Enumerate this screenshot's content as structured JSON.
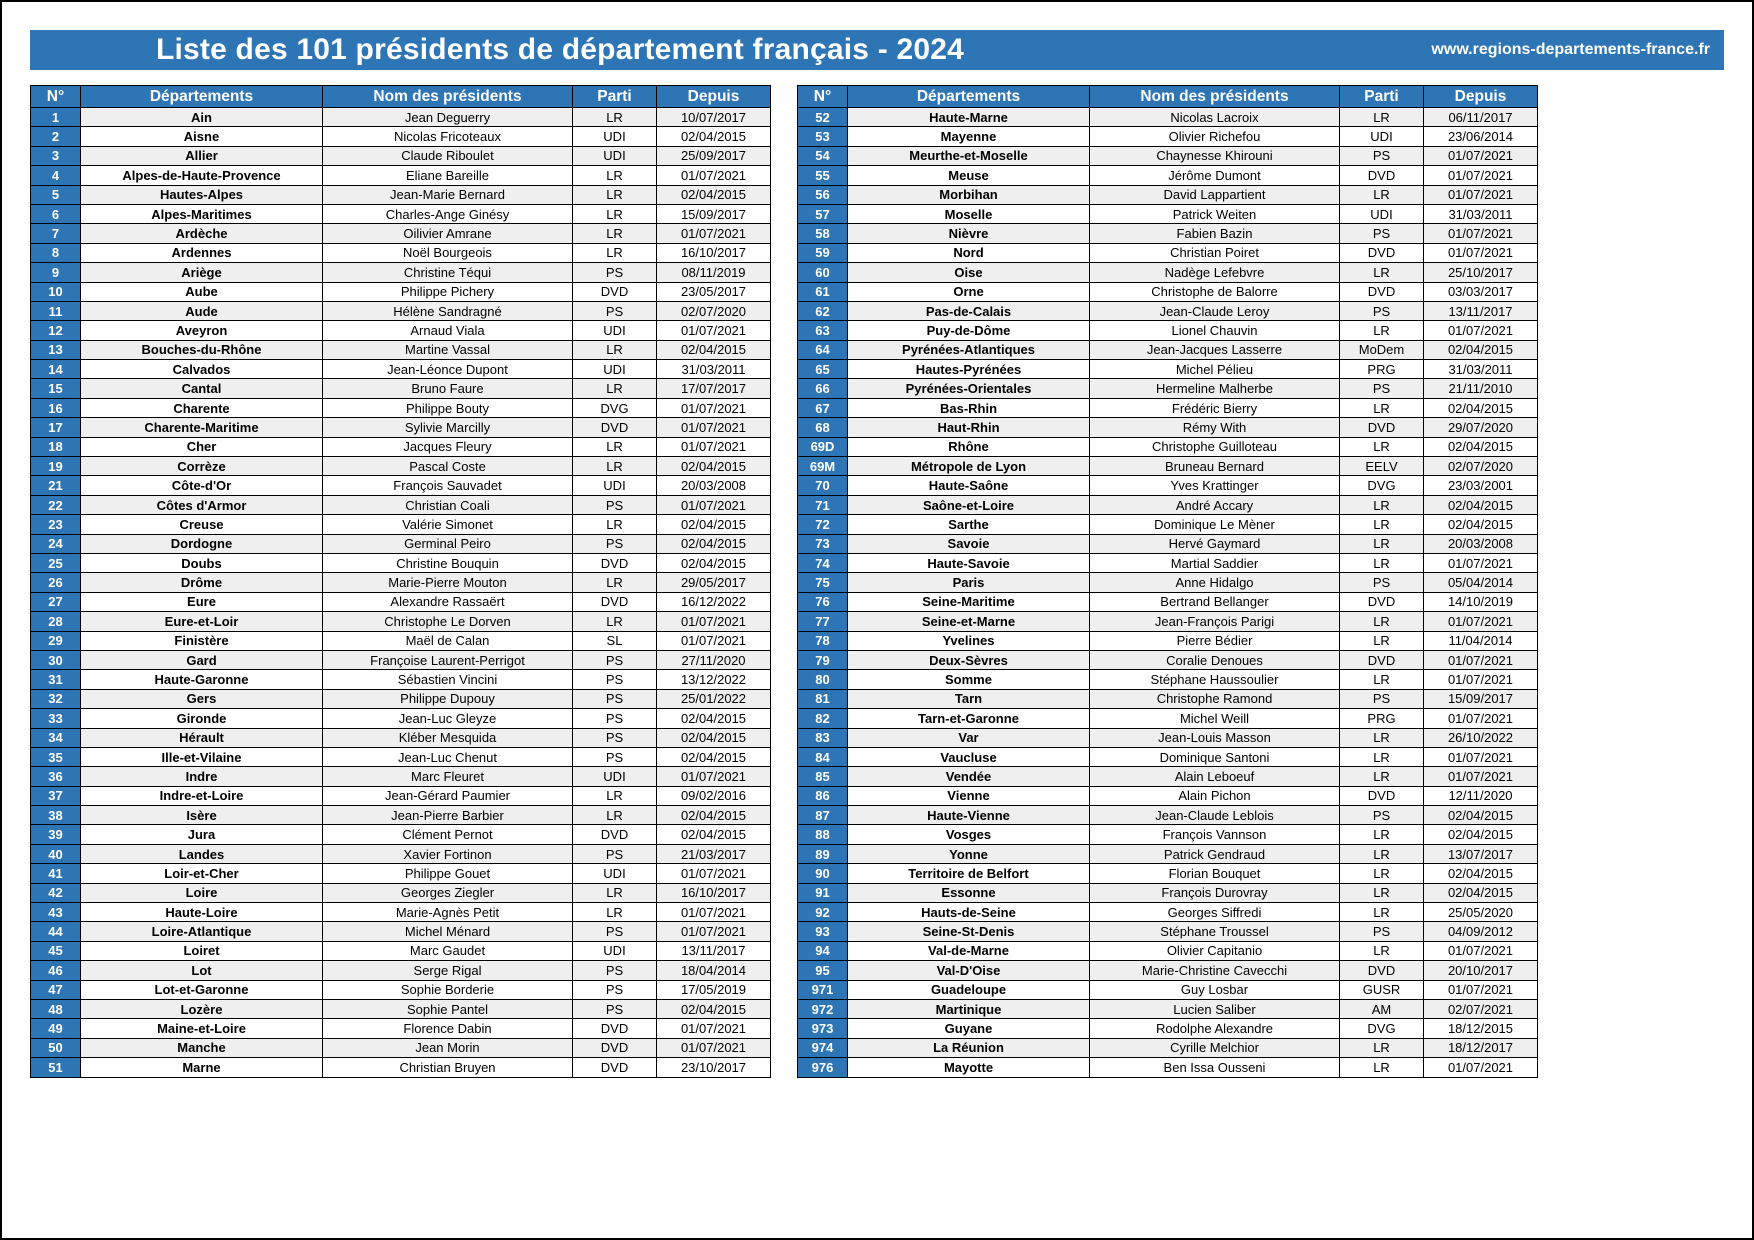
{
  "page": {
    "title": "Liste des 101 présidents de département français - 2024",
    "website": "www.regions-departements-france.fr",
    "accent_color": "#2E75B6",
    "stripe_color": "#EFEFEF"
  },
  "table": {
    "headers": [
      "N°",
      "Départements",
      "Nom des présidents",
      "Parti",
      "Depuis"
    ],
    "left_rows": [
      [
        "1",
        "Ain",
        "Jean Deguerry",
        "LR",
        "10/07/2017"
      ],
      [
        "2",
        "Aisne",
        "Nicolas Fricoteaux",
        "UDI",
        "02/04/2015"
      ],
      [
        "3",
        "Allier",
        "Claude Riboulet",
        "UDI",
        "25/09/2017"
      ],
      [
        "4",
        "Alpes-de-Haute-Provence",
        "Eliane Bareille",
        "LR",
        "01/07/2021"
      ],
      [
        "5",
        "Hautes-Alpes",
        "Jean-Marie Bernard",
        "LR",
        "02/04/2015"
      ],
      [
        "6",
        "Alpes-Maritimes",
        "Charles-Ange Ginésy",
        "LR",
        "15/09/2017"
      ],
      [
        "7",
        "Ardèche",
        "Oilivier Amrane",
        "LR",
        "01/07/2021"
      ],
      [
        "8",
        "Ardennes",
        "Noël Bourgeois",
        "LR",
        "16/10/2017"
      ],
      [
        "9",
        "Ariège",
        "Christine Téqui",
        "PS",
        "08/11/2019"
      ],
      [
        "10",
        "Aube",
        "Philippe Pichery",
        "DVD",
        "23/05/2017"
      ],
      [
        "11",
        "Aude",
        "Hélène Sandragné",
        "PS",
        "02/07/2020"
      ],
      [
        "12",
        "Aveyron",
        "Arnaud Viala",
        "UDI",
        "01/07/2021"
      ],
      [
        "13",
        "Bouches-du-Rhône",
        "Martine Vassal",
        "LR",
        "02/04/2015"
      ],
      [
        "14",
        "Calvados",
        "Jean-Léonce Dupont",
        "UDI",
        "31/03/2011"
      ],
      [
        "15",
        "Cantal",
        "Bruno Faure",
        "LR",
        "17/07/2017"
      ],
      [
        "16",
        "Charente",
        "Philippe Bouty",
        "DVG",
        "01/07/2021"
      ],
      [
        "17",
        "Charente-Maritime",
        "Sylivie Marcilly",
        "DVD",
        "01/07/2021"
      ],
      [
        "18",
        "Cher",
        "Jacques Fleury",
        "LR",
        "01/07/2021"
      ],
      [
        "19",
        "Corrèze",
        "Pascal Coste",
        "LR",
        "02/04/2015"
      ],
      [
        "21",
        "Côte-d'Or",
        "François Sauvadet",
        "UDI",
        "20/03/2008"
      ],
      [
        "22",
        "Côtes d'Armor",
        "Christian Coali",
        "PS",
        "01/07/2021"
      ],
      [
        "23",
        "Creuse",
        "Valérie Simonet",
        "LR",
        "02/04/2015"
      ],
      [
        "24",
        "Dordogne",
        "Germinal Peiro",
        "PS",
        "02/04/2015"
      ],
      [
        "25",
        "Doubs",
        "Christine Bouquin",
        "DVD",
        "02/04/2015"
      ],
      [
        "26",
        "Drôme",
        "Marie-Pierre Mouton",
        "LR",
        "29/05/2017"
      ],
      [
        "27",
        "Eure",
        "Alexandre Rassaërt",
        "DVD",
        "16/12/2022"
      ],
      [
        "28",
        "Eure-et-Loir",
        "Christophe Le Dorven",
        "LR",
        "01/07/2021"
      ],
      [
        "29",
        "Finistère",
        "Maël de Calan",
        "SL",
        "01/07/2021"
      ],
      [
        "30",
        "Gard",
        "Françoise Laurent-Perrigot",
        "PS",
        "27/11/2020"
      ],
      [
        "31",
        "Haute-Garonne",
        "Sébastien Vincini",
        "PS",
        "13/12/2022"
      ],
      [
        "32",
        "Gers",
        "Philippe Dupouy",
        "PS",
        "25/01/2022"
      ],
      [
        "33",
        "Gironde",
        "Jean-Luc Gleyze",
        "PS",
        "02/04/2015"
      ],
      [
        "34",
        "Hérault",
        "Kléber Mesquida",
        "PS",
        "02/04/2015"
      ],
      [
        "35",
        "Ille-et-Vilaine",
        "Jean-Luc Chenut",
        "PS",
        "02/04/2015"
      ],
      [
        "36",
        "Indre",
        "Marc Fleuret",
        "UDI",
        "01/07/2021"
      ],
      [
        "37",
        "Indre-et-Loire",
        "Jean-Gérard Paumier",
        "LR",
        "09/02/2016"
      ],
      [
        "38",
        "Isère",
        "Jean-Pierre Barbier",
        "LR",
        "02/04/2015"
      ],
      [
        "39",
        "Jura",
        "Clément Pernot",
        "DVD",
        "02/04/2015"
      ],
      [
        "40",
        "Landes",
        "Xavier Fortinon",
        "PS",
        "21/03/2017"
      ],
      [
        "41",
        "Loir-et-Cher",
        "Philippe Gouet",
        "UDI",
        "01/07/2021"
      ],
      [
        "42",
        "Loire",
        "Georges Ziegler",
        "LR",
        "16/10/2017"
      ],
      [
        "43",
        "Haute-Loire",
        "Marie-Agnès Petit",
        "LR",
        "01/07/2021"
      ],
      [
        "44",
        "Loire-Atlantique",
        "Michel Ménard",
        "PS",
        "01/07/2021"
      ],
      [
        "45",
        "Loiret",
        "Marc Gaudet",
        "UDI",
        "13/11/2017"
      ],
      [
        "46",
        "Lot",
        "Serge Rigal",
        "PS",
        "18/04/2014"
      ],
      [
        "47",
        "Lot-et-Garonne",
        "Sophie Borderie",
        "PS",
        "17/05/2019"
      ],
      [
        "48",
        "Lozère",
        "Sophie Pantel",
        "PS",
        "02/04/2015"
      ],
      [
        "49",
        "Maine-et-Loire",
        "Florence Dabin",
        "DVD",
        "01/07/2021"
      ],
      [
        "50",
        "Manche",
        "Jean Morin",
        "DVD",
        "01/07/2021"
      ],
      [
        "51",
        "Marne",
        "Christian Bruyen",
        "DVD",
        "23/10/2017"
      ]
    ],
    "right_rows": [
      [
        "52",
        "Haute-Marne",
        "Nicolas Lacroix",
        "LR",
        "06/11/2017"
      ],
      [
        "53",
        "Mayenne",
        "Olivier Richefou",
        "UDI",
        "23/06/2014"
      ],
      [
        "54",
        "Meurthe-et-Moselle",
        "Chaynesse Khirouni",
        "PS",
        "01/07/2021"
      ],
      [
        "55",
        "Meuse",
        "Jérôme Dumont",
        "DVD",
        "01/07/2021"
      ],
      [
        "56",
        "Morbihan",
        "David Lappartient",
        "LR",
        "01/07/2021"
      ],
      [
        "57",
        "Moselle",
        "Patrick Weiten",
        "UDI",
        "31/03/2011"
      ],
      [
        "58",
        "Nièvre",
        "Fabien Bazin",
        "PS",
        "01/07/2021"
      ],
      [
        "59",
        "Nord",
        "Christian Poiret",
        "DVD",
        "01/07/2021"
      ],
      [
        "60",
        "Oise",
        "Nadège Lefebvre",
        "LR",
        "25/10/2017"
      ],
      [
        "61",
        "Orne",
        "Christophe de Balorre",
        "DVD",
        "03/03/2017"
      ],
      [
        "62",
        "Pas-de-Calais",
        "Jean-Claude Leroy",
        "PS",
        "13/11/2017"
      ],
      [
        "63",
        "Puy-de-Dôme",
        "Lionel Chauvin",
        "LR",
        "01/07/2021"
      ],
      [
        "64",
        "Pyrénées-Atlantiques",
        "Jean-Jacques Lasserre",
        "MoDem",
        "02/04/2015"
      ],
      [
        "65",
        "Hautes-Pyrénées",
        "Michel Pélieu",
        "PRG",
        "31/03/2011"
      ],
      [
        "66",
        "Pyrénées-Orientales",
        "Hermeline Malherbe",
        "PS",
        "21/11/2010"
      ],
      [
        "67",
        "Bas-Rhin",
        "Frédéric Bierry",
        "LR",
        "02/04/2015"
      ],
      [
        "68",
        "Haut-Rhin",
        "Rémy With",
        "DVD",
        "29/07/2020"
      ],
      [
        "69D",
        "Rhône",
        "Christophe Guilloteau",
        "LR",
        "02/04/2015"
      ],
      [
        "69M",
        "Métropole de Lyon",
        "Bruneau Bernard",
        "EELV",
        "02/07/2020"
      ],
      [
        "70",
        "Haute-Saône",
        "Yves Krattinger",
        "DVG",
        "23/03/2001"
      ],
      [
        "71",
        "Saône-et-Loire",
        "André Accary",
        "LR",
        "02/04/2015"
      ],
      [
        "72",
        "Sarthe",
        "Dominique Le Mèner",
        "LR",
        "02/04/2015"
      ],
      [
        "73",
        "Savoie",
        "Hervé Gaymard",
        "LR",
        "20/03/2008"
      ],
      [
        "74",
        "Haute-Savoie",
        "Martial Saddier",
        "LR",
        "01/07/2021"
      ],
      [
        "75",
        "Paris",
        "Anne Hidalgo",
        "PS",
        "05/04/2014"
      ],
      [
        "76",
        "Seine-Maritime",
        "Bertrand Bellanger",
        "DVD",
        "14/10/2019"
      ],
      [
        "77",
        "Seine-et-Marne",
        "Jean-François Parigi",
        "LR",
        "01/07/2021"
      ],
      [
        "78",
        "Yvelines",
        "Pierre Bédier",
        "LR",
        "11/04/2014"
      ],
      [
        "79",
        "Deux-Sèvres",
        "Coralie Denoues",
        "DVD",
        "01/07/2021"
      ],
      [
        "80",
        "Somme",
        "Stéphane Haussoulier",
        "LR",
        "01/07/2021"
      ],
      [
        "81",
        "Tarn",
        "Christophe Ramond",
        "PS",
        "15/09/2017"
      ],
      [
        "82",
        "Tarn-et-Garonne",
        "Michel Weill",
        "PRG",
        "01/07/2021"
      ],
      [
        "83",
        "Var",
        "Jean-Louis Masson",
        "LR",
        "26/10/2022"
      ],
      [
        "84",
        "Vaucluse",
        "Dominique Santoni",
        "LR",
        "01/07/2021"
      ],
      [
        "85",
        "Vendée",
        "Alain Leboeuf",
        "LR",
        "01/07/2021"
      ],
      [
        "86",
        "Vienne",
        "Alain Pichon",
        "DVD",
        "12/11/2020"
      ],
      [
        "87",
        "Haute-Vienne",
        "Jean-Claude Leblois",
        "PS",
        "02/04/2015"
      ],
      [
        "88",
        "Vosges",
        "François Vannson",
        "LR",
        "02/04/2015"
      ],
      [
        "89",
        "Yonne",
        "Patrick Gendraud",
        "LR",
        "13/07/2017"
      ],
      [
        "90",
        "Territoire de Belfort",
        "Florian Bouquet",
        "LR",
        "02/04/2015"
      ],
      [
        "91",
        "Essonne",
        "François Durovray",
        "LR",
        "02/04/2015"
      ],
      [
        "92",
        "Hauts-de-Seine",
        "Georges Siffredi",
        "LR",
        "25/05/2020"
      ],
      [
        "93",
        "Seine-St-Denis",
        "Stéphane Troussel",
        "PS",
        "04/09/2012"
      ],
      [
        "94",
        "Val-de-Marne",
        "Olivier Capitanio",
        "LR",
        "01/07/2021"
      ],
      [
        "95",
        "Val-D'Oise",
        "Marie-Christine Cavecchi",
        "DVD",
        "20/10/2017"
      ],
      [
        "971",
        "Guadeloupe",
        "Guy Losbar",
        "GUSR",
        "01/07/2021"
      ],
      [
        "972",
        "Martinique",
        "Lucien Saliber",
        "AM",
        "02/07/2021"
      ],
      [
        "973",
        "Guyane",
        "Rodolphe Alexandre",
        "DVG",
        "18/12/2015"
      ],
      [
        "974",
        "La Réunion",
        "Cyrille Melchior",
        "LR",
        "18/12/2017"
      ],
      [
        "976",
        "Mayotte",
        "Ben Issa Ousseni",
        "LR",
        "01/07/2021"
      ]
    ]
  }
}
